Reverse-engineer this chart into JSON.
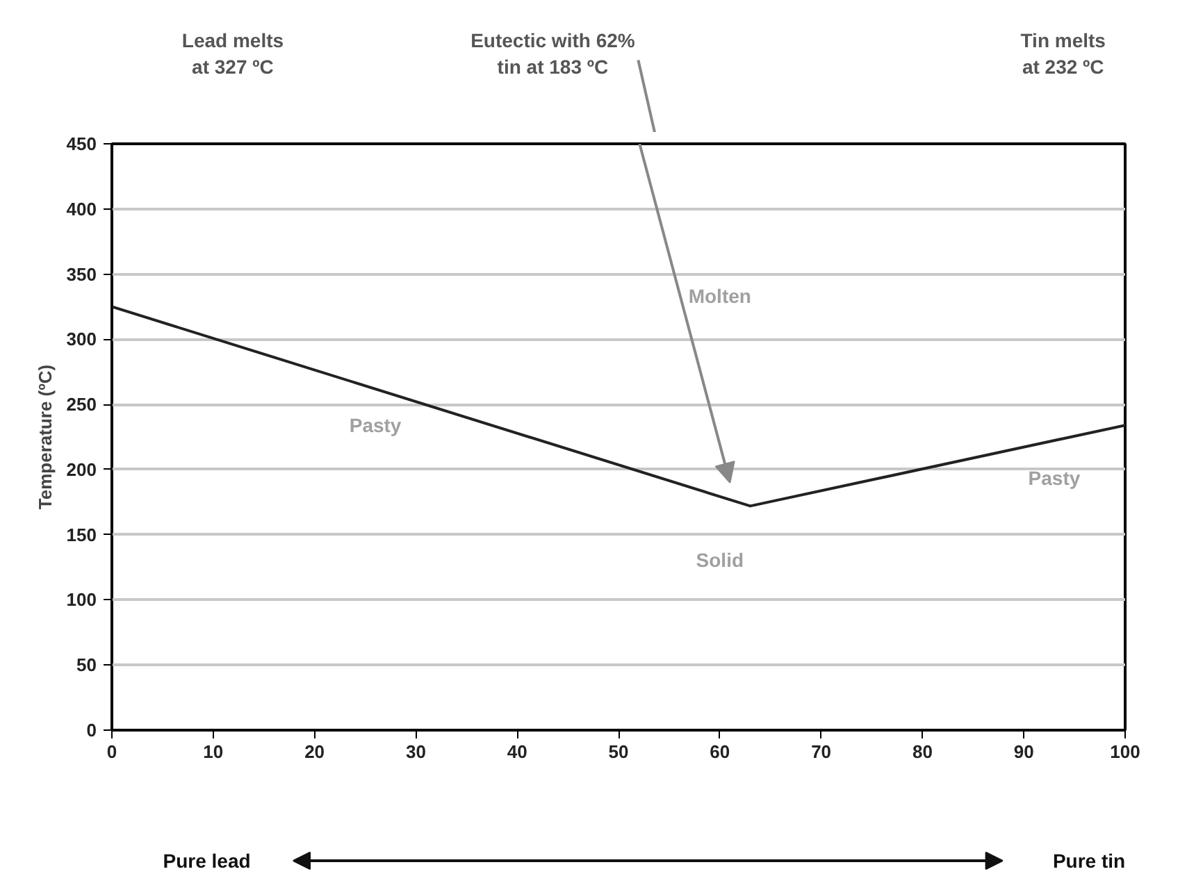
{
  "chart_data": {
    "type": "line",
    "ylabel": "Temperature (ºC)",
    "x": [
      0,
      63,
      100
    ],
    "series": [
      {
        "color": "#222222",
        "values": [
          325,
          172,
          234
        ]
      }
    ],
    "xlim": [
      0,
      100
    ],
    "xticks": [
      0,
      10,
      20,
      30,
      40,
      50,
      60,
      70,
      80,
      90,
      100
    ],
    "ylim": [
      0,
      450
    ],
    "yticks": [
      0,
      50,
      100,
      150,
      200,
      250,
      300,
      350,
      400,
      450
    ],
    "grid": "y",
    "marker": "none",
    "line_style": "solid",
    "annotations": [
      "Lead melts\nat 327 ºC",
      "Tin melts\nat 232 ºC",
      "Pure lead",
      "Pure tin",
      "Molten",
      "Pasty",
      "Pasty",
      "Solid",
      "Eutectic with 62%\ntin at 183 ºC"
    ]
  }
}
